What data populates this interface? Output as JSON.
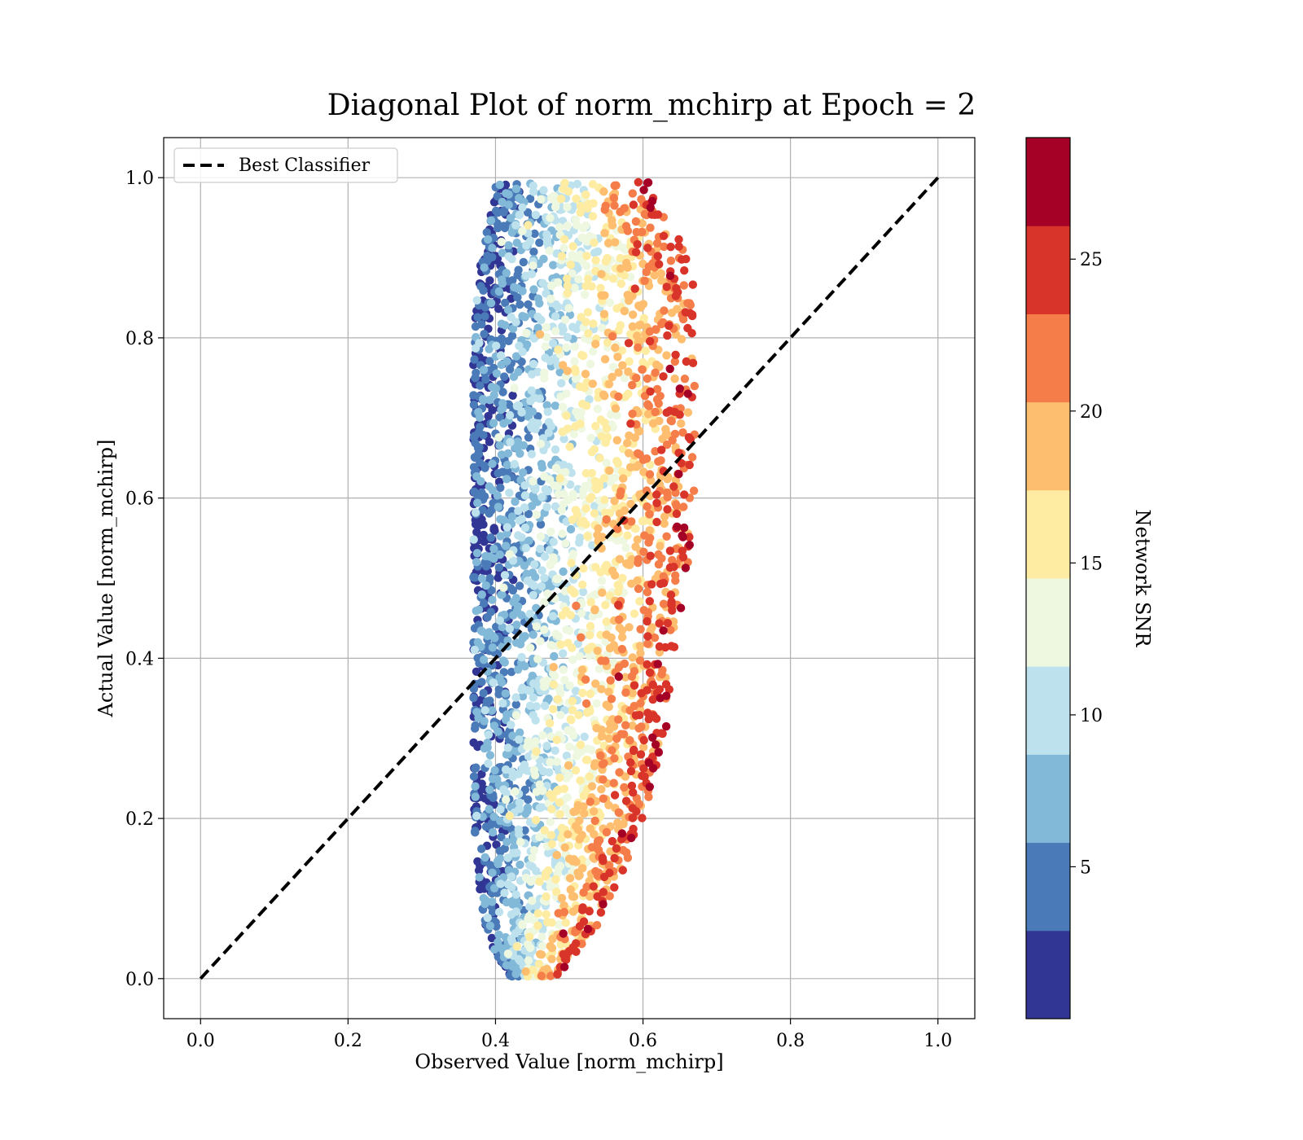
{
  "chart_data": {
    "type": "scatter",
    "title": "Diagonal Plot of norm_mchirp at Epoch = 2",
    "xlabel": "Observed Value [norm_mchirp]",
    "ylabel": "Actual Value [norm_mchirp]",
    "xlim": [
      -0.05,
      1.05
    ],
    "ylim": [
      -0.05,
      1.05
    ],
    "xticks": [
      0.0,
      0.2,
      0.4,
      0.6,
      0.8,
      1.0
    ],
    "yticks": [
      0.0,
      0.2,
      0.4,
      0.6,
      0.8,
      1.0
    ],
    "xtick_labels": [
      "0.0",
      "0.2",
      "0.4",
      "0.6",
      "0.8",
      "1.0"
    ],
    "ytick_labels": [
      "0.0",
      "0.2",
      "0.4",
      "0.6",
      "0.8",
      "1.0"
    ],
    "grid": true,
    "legend": {
      "placement": "top-left",
      "entries": [
        "Best Classifier"
      ]
    },
    "reference_line": {
      "name": "Best Classifier",
      "style": "dashed",
      "color": "#000000",
      "x": [
        0.0,
        1.0
      ],
      "y": [
        0.0,
        1.0
      ]
    },
    "colorbar": {
      "label": "Network SNR",
      "range": [
        0,
        29
      ],
      "ticks": [
        5,
        10,
        15,
        20,
        25
      ],
      "tick_labels": [
        "5",
        "10",
        "15",
        "20",
        "25"
      ],
      "colormap": "RdYlBu_r",
      "colors": [
        "#313695",
        "#4a7ab7",
        "#83b9d8",
        "#bde2ee",
        "#eef7e0",
        "#feeca2",
        "#fdbe70",
        "#f47d4a",
        "#d83429",
        "#a50026"
      ]
    },
    "point_cloud": {
      "description_values": "approximate density profile of the observed points, by actual value",
      "profile": [
        {
          "y": 0.0,
          "x_left": 0.42,
          "x_right": 0.48
        },
        {
          "y": 0.05,
          "x_left": 0.39,
          "x_right": 0.53
        },
        {
          "y": 0.1,
          "x_left": 0.38,
          "x_right": 0.56
        },
        {
          "y": 0.2,
          "x_left": 0.37,
          "x_right": 0.6
        },
        {
          "y": 0.3,
          "x_left": 0.37,
          "x_right": 0.63
        },
        {
          "y": 0.4,
          "x_left": 0.37,
          "x_right": 0.64
        },
        {
          "y": 0.5,
          "x_left": 0.37,
          "x_right": 0.66
        },
        {
          "y": 0.6,
          "x_left": 0.37,
          "x_right": 0.67
        },
        {
          "y": 0.7,
          "x_left": 0.37,
          "x_right": 0.67
        },
        {
          "y": 0.8,
          "x_left": 0.37,
          "x_right": 0.67
        },
        {
          "y": 0.9,
          "x_left": 0.38,
          "x_right": 0.67
        },
        {
          "y": 0.98,
          "x_left": 0.4,
          "x_right": 0.61
        }
      ],
      "snr_trend": "SNR increases from low (blue, left edge near x≈0.38) to high (red, right side near x≈0.55–0.65)"
    }
  }
}
